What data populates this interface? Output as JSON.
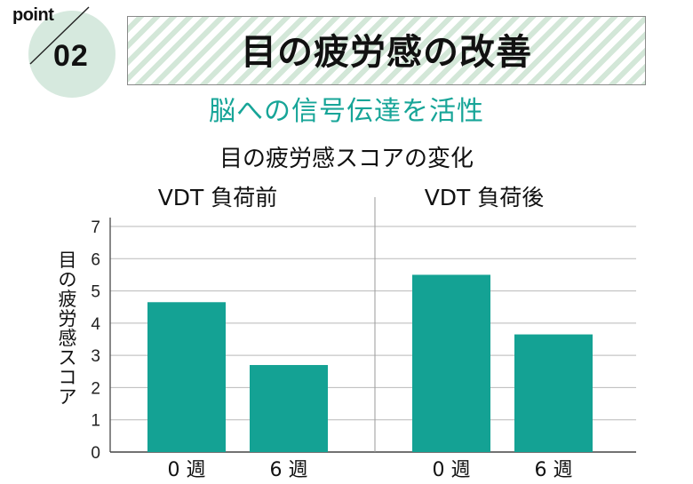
{
  "badge": {
    "word": "point",
    "number": "02"
  },
  "banner": {
    "title": "目の疲労感の改善"
  },
  "subtitle": "脳への信号伝達を活性",
  "chart_data": {
    "type": "bar",
    "title": "目の疲労感スコアの変化",
    "ylabel": "目の疲労感スコア",
    "ylim": [
      0,
      7
    ],
    "yticks": [
      "0",
      "1",
      "2",
      "3",
      "4",
      "5",
      "6",
      "7"
    ],
    "grid": true,
    "panels": [
      {
        "title": "VDT 負荷前",
        "categories": [
          "0 週",
          "6 週"
        ],
        "values": [
          4.65,
          2.7
        ]
      },
      {
        "title": "VDT 負荷後",
        "categories": [
          "0 週",
          "6 週"
        ],
        "values": [
          5.5,
          3.65
        ]
      }
    ],
    "bar_color": "#14a294"
  }
}
